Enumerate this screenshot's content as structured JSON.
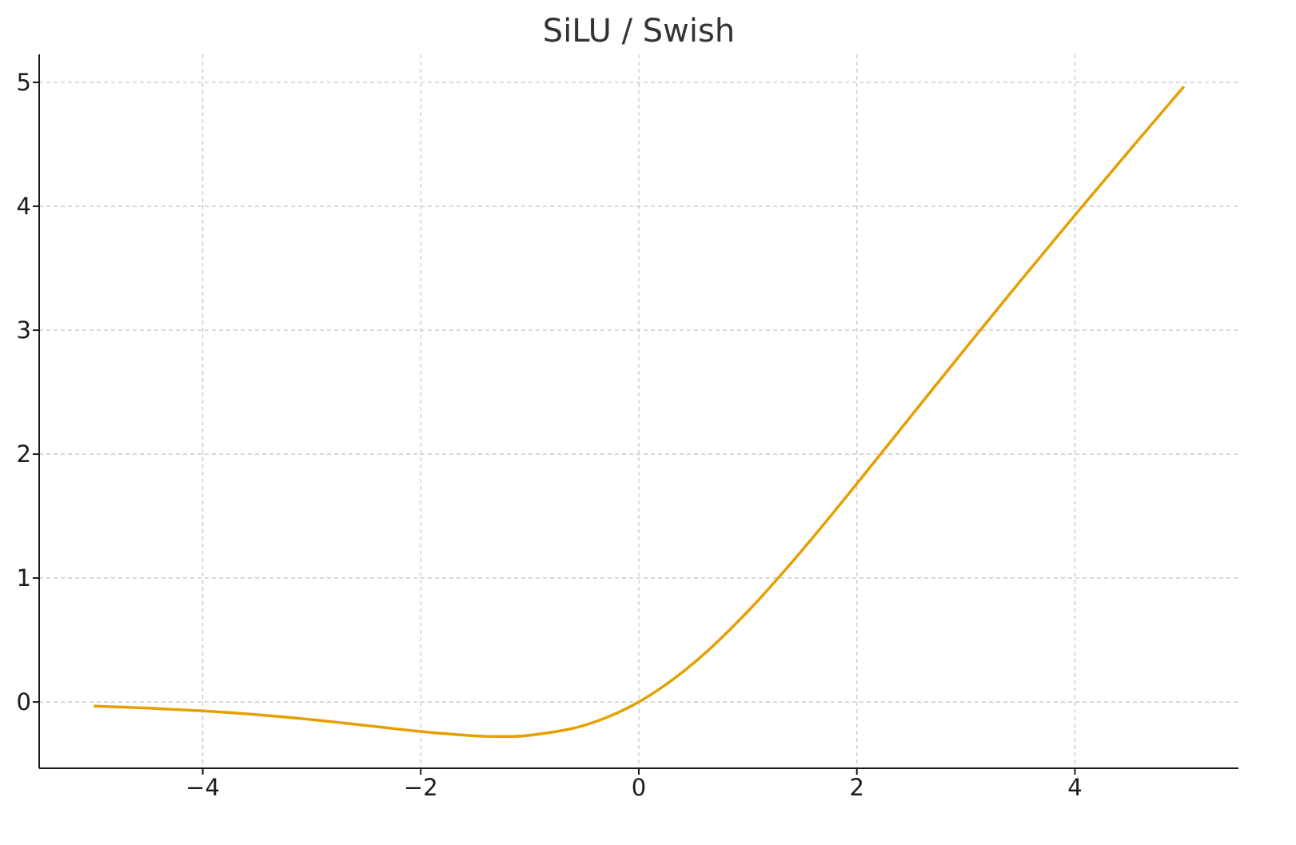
{
  "chart_data": {
    "type": "line",
    "title": "SiLU / Swish",
    "xlabel": "",
    "ylabel": "",
    "xlim": [
      -5.5,
      5.5
    ],
    "ylim": [
      -0.535,
      5.226
    ],
    "x_ticks": [
      -4,
      -2,
      0,
      2,
      4
    ],
    "x_tick_labels": [
      "−4",
      "−2",
      "0",
      "2",
      "4"
    ],
    "y_ticks": [
      0,
      1,
      2,
      3,
      4,
      5
    ],
    "y_tick_labels": [
      "0",
      "1",
      "2",
      "3",
      "4",
      "5"
    ],
    "grid": true,
    "grid_style": "dashed",
    "legend": "none",
    "colors": {
      "line": "#E69F00",
      "grid": "#c8c8c8",
      "axis": "#1a1a1a"
    },
    "series": [
      {
        "x": [
          -5,
          -4.5,
          -4,
          -3.5,
          -3,
          -2.5,
          -2,
          -1.5,
          -1.25,
          -1,
          -0.5,
          0,
          0.5,
          1,
          1.5,
          2,
          2.5,
          3,
          3.5,
          4,
          4.5,
          5
        ],
        "y": [
          -0.0335,
          -0.0494,
          -0.0719,
          -0.1026,
          -0.1423,
          -0.1897,
          -0.2384,
          -0.2736,
          -0.2784,
          -0.2689,
          -0.1888,
          0,
          0.3112,
          0.7311,
          1.2264,
          1.7616,
          2.3103,
          2.8577,
          3.3974,
          3.9281,
          4.4504,
          4.9665
        ]
      }
    ]
  }
}
